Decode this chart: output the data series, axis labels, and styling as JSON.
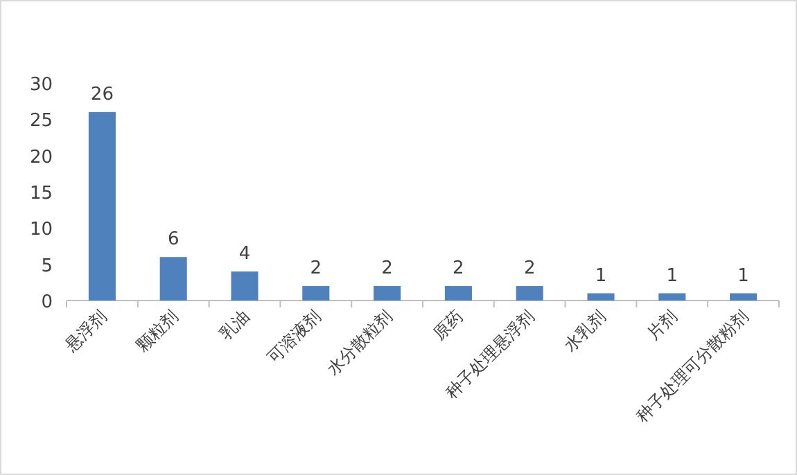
{
  "chart_data": {
    "type": "bar",
    "categories": [
      "悬浮剂",
      "颗粒剂",
      "乳油",
      "可溶液剂",
      "水分散粒剂",
      "原药",
      "种子处理悬浮剂",
      "水乳剂",
      "片剂",
      "种子处理可分散粉剂"
    ],
    "values": [
      26,
      6,
      4,
      2,
      2,
      2,
      2,
      1,
      1,
      1
    ],
    "color": "#4f81bd",
    "ylim": [
      0,
      30
    ],
    "yticks": [
      0,
      5,
      10,
      15,
      20,
      25,
      30
    ],
    "data_labels": true
  }
}
